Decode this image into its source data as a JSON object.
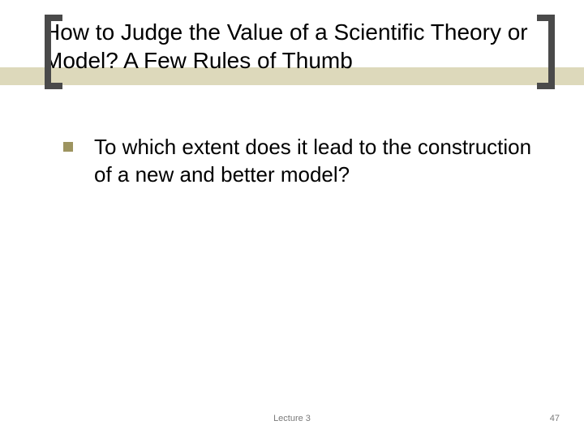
{
  "title": "How to Judge the Value of a Scientific Theory or Model? A Few Rules of Thumb",
  "bullets": [
    "To which extent does it lead to the construction of a new and better model?"
  ],
  "footer": {
    "center": "Lecture 3",
    "pagenum": "47"
  },
  "colors": {
    "stripe": "#ddd9bb",
    "bullet": "#9d9460",
    "bracket": "#4a4a4a"
  }
}
